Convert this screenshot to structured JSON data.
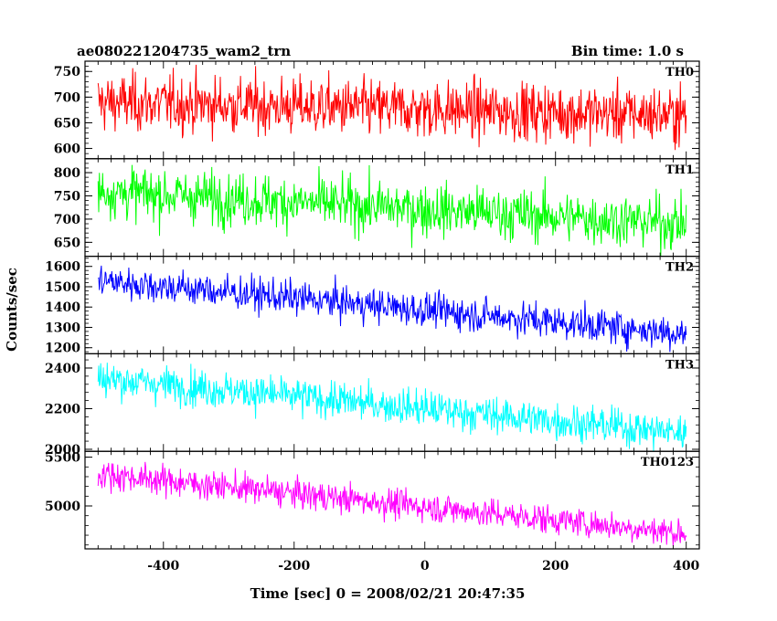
{
  "header": {
    "title": "ae080221204735_wam2_trn",
    "bin_time": "Bin time: 1.0 s"
  },
  "chart_data": {
    "type": "line",
    "xlabel": "Time [sec] 0 = 2008/02/21 20:47:35",
    "ylabel": "Counts/sec",
    "xlim": [
      -520,
      420
    ],
    "xticks": [
      -400,
      -200,
      0,
      200,
      400
    ],
    "x_start": -500,
    "x_end": 400,
    "x_step": 1,
    "panels": [
      {
        "name": "TH0",
        "color": "#ff0000",
        "ylim": [
          580,
          770
        ],
        "yticks": [
          600,
          650,
          700,
          750
        ],
        "trend_start": 690,
        "trend_end": 665,
        "noise": 28
      },
      {
        "name": "TH1",
        "color": "#00ff00",
        "ylim": [
          620,
          830
        ],
        "yticks": [
          650,
          700,
          750,
          800
        ],
        "trend_start": 760,
        "trend_end": 690,
        "noise": 28
      },
      {
        "name": "TH2",
        "color": "#0000ff",
        "ylim": [
          1170,
          1650
        ],
        "yticks": [
          1200,
          1300,
          1400,
          1500,
          1600
        ],
        "trend_start": 1530,
        "trend_end": 1270,
        "noise": 42
      },
      {
        "name": "TH3",
        "color": "#00ffff",
        "ylim": [
          1990,
          2470
        ],
        "yticks": [
          2000,
          2200,
          2400
        ],
        "trend_start": 2350,
        "trend_end": 2080,
        "noise": 45
      },
      {
        "name": "TH0123",
        "color": "#ff00ff",
        "ylim": [
          4560,
          5560
        ],
        "yticks": [
          5000,
          5500
        ],
        "trend_start": 5330,
        "trend_end": 4720,
        "noise": 75
      }
    ]
  }
}
